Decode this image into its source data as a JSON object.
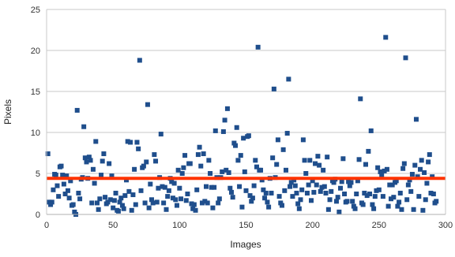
{
  "chart_data": {
    "type": "scatter",
    "title": "",
    "xlabel": "Images",
    "ylabel": "Pixels",
    "xlim": [
      0,
      300
    ],
    "ylim": [
      0,
      25
    ],
    "xticks": [
      "0",
      "50",
      "100",
      "150",
      "200",
      "250",
      "300"
    ],
    "yticks": [
      "0",
      "5",
      "10",
      "15",
      "20",
      "25"
    ],
    "grid": true,
    "legend": "none",
    "marker": "square",
    "point_color": "#1f4e8c",
    "mean_line": {
      "y": 4.4,
      "color": "#ff3300"
    },
    "points": [
      [
        1,
        7.4
      ],
      [
        2,
        1.5
      ],
      [
        3,
        1.2
      ],
      [
        4,
        1.5
      ],
      [
        5,
        3.0
      ],
      [
        6,
        4.9
      ],
      [
        7,
        4.8
      ],
      [
        8,
        3.5
      ],
      [
        9,
        2.2
      ],
      [
        10,
        5.8
      ],
      [
        11,
        5.9
      ],
      [
        12,
        4.8
      ],
      [
        13,
        3.7
      ],
      [
        14,
        2.5
      ],
      [
        15,
        4.7
      ],
      [
        16,
        2.9
      ],
      [
        17,
        2.0
      ],
      [
        18,
        4.1
      ],
      [
        19,
        1.1
      ],
      [
        20,
        1.2
      ],
      [
        21,
        0.3
      ],
      [
        22,
        0.0
      ],
      [
        23,
        12.7
      ],
      [
        24,
        2.6
      ],
      [
        25,
        1.9
      ],
      [
        26,
        4.3
      ],
      [
        27,
        4.5
      ],
      [
        28,
        10.7
      ],
      [
        29,
        6.9
      ],
      [
        30,
        6.4
      ],
      [
        31,
        4.4
      ],
      [
        32,
        7.0
      ],
      [
        33,
        6.6
      ],
      [
        34,
        1.4
      ],
      [
        35,
        5.5
      ],
      [
        36,
        3.8
      ],
      [
        37,
        8.9
      ],
      [
        38,
        1.4
      ],
      [
        39,
        0.6
      ],
      [
        40,
        1.9
      ],
      [
        41,
        4.8
      ],
      [
        42,
        6.5
      ],
      [
        43,
        7.4
      ],
      [
        44,
        2.1
      ],
      [
        45,
        1.3
      ],
      [
        46,
        1.5
      ],
      [
        47,
        6.2
      ],
      [
        48,
        1.8
      ],
      [
        49,
        4.7
      ],
      [
        50,
        0.8
      ],
      [
        51,
        1.7
      ],
      [
        52,
        2.6
      ],
      [
        53,
        0.5
      ],
      [
        54,
        0.4
      ],
      [
        55,
        1.5
      ],
      [
        56,
        2.0
      ],
      [
        57,
        1.1
      ],
      [
        58,
        0.7
      ],
      [
        59,
        2.3
      ],
      [
        60,
        4.2
      ],
      [
        61,
        8.9
      ],
      [
        62,
        2.8
      ],
      [
        63,
        8.8
      ],
      [
        64,
        0.5
      ],
      [
        65,
        2.4
      ],
      [
        66,
        5.5
      ],
      [
        67,
        1.2
      ],
      [
        68,
        8.8
      ],
      [
        69,
        8.0
      ],
      [
        70,
        18.8
      ],
      [
        71,
        2.9
      ],
      [
        72,
        5.7
      ],
      [
        73,
        5.9
      ],
      [
        74,
        1.4
      ],
      [
        75,
        6.4
      ],
      [
        76,
        13.4
      ],
      [
        77,
        0.8
      ],
      [
        78,
        3.7
      ],
      [
        79,
        1.8
      ],
      [
        80,
        1.4
      ],
      [
        81,
        7.3
      ],
      [
        82,
        6.5
      ],
      [
        83,
        1.5
      ],
      [
        84,
        3.2
      ],
      [
        85,
        4.5
      ],
      [
        86,
        9.8
      ],
      [
        87,
        3.4
      ],
      [
        88,
        1.4
      ],
      [
        89,
        3.3
      ],
      [
        90,
        0.6
      ],
      [
        91,
        2.2
      ],
      [
        92,
        2.9
      ],
      [
        93,
        4.4
      ],
      [
        94,
        4.0
      ],
      [
        95,
        2.0
      ],
      [
        96,
        3.8
      ],
      [
        97,
        1.8
      ],
      [
        98,
        1.1
      ],
      [
        99,
        5.4
      ],
      [
        100,
        3.2
      ],
      [
        101,
        1.9
      ],
      [
        102,
        5.0
      ],
      [
        103,
        5.7
      ],
      [
        104,
        7.2
      ],
      [
        105,
        1.7
      ],
      [
        106,
        2.5
      ],
      [
        107,
        6.2
      ],
      [
        108,
        6.2
      ],
      [
        109,
        1.3
      ],
      [
        110,
        0.7
      ],
      [
        111,
        1.2
      ],
      [
        112,
        0.5
      ],
      [
        113,
        3.0
      ],
      [
        114,
        7.3
      ],
      [
        115,
        8.2
      ],
      [
        116,
        5.9
      ],
      [
        117,
        1.4
      ],
      [
        118,
        7.4
      ],
      [
        119,
        1.6
      ],
      [
        120,
        3.4
      ],
      [
        121,
        1.4
      ],
      [
        122,
        6.6
      ],
      [
        123,
        5.0
      ],
      [
        124,
        3.3
      ],
      [
        125,
        0.8
      ],
      [
        126,
        3.3
      ],
      [
        127,
        10.2
      ],
      [
        128,
        4.5
      ],
      [
        129,
        1.4
      ],
      [
        130,
        1.9
      ],
      [
        131,
        4.5
      ],
      [
        132,
        5.2
      ],
      [
        133,
        10.1
      ],
      [
        134,
        11.5
      ],
      [
        135,
        5.4
      ],
      [
        136,
        12.9
      ],
      [
        137,
        5.1
      ],
      [
        138,
        3.2
      ],
      [
        139,
        2.7
      ],
      [
        140,
        2.1
      ],
      [
        141,
        8.7
      ],
      [
        142,
        8.4
      ],
      [
        143,
        10.6
      ],
      [
        144,
        6.6
      ],
      [
        145,
        3.4
      ],
      [
        146,
        7.2
      ],
      [
        147,
        0.9
      ],
      [
        148,
        9.3
      ],
      [
        149,
        5.2
      ],
      [
        150,
        2.9
      ],
      [
        151,
        9.5
      ],
      [
        152,
        9.6
      ],
      [
        153,
        2.3
      ],
      [
        154,
        1.6
      ],
      [
        155,
        2.0
      ],
      [
        156,
        3.5
      ],
      [
        157,
        6.6
      ],
      [
        158,
        5.8
      ],
      [
        159,
        20.4
      ],
      [
        160,
        5.4
      ],
      [
        161,
        5.4
      ],
      [
        162,
        4.2
      ],
      [
        163,
        3.0
      ],
      [
        164,
        2.0
      ],
      [
        165,
        2.6
      ],
      [
        166,
        1.5
      ],
      [
        167,
        0.9
      ],
      [
        168,
        4.4
      ],
      [
        169,
        2.6
      ],
      [
        170,
        6.9
      ],
      [
        171,
        15.3
      ],
      [
        172,
        4.5
      ],
      [
        173,
        6.1
      ],
      [
        174,
        9.1
      ],
      [
        175,
        2.2
      ],
      [
        176,
        1.4
      ],
      [
        177,
        1.1
      ],
      [
        178,
        7.9
      ],
      [
        179,
        2.9
      ],
      [
        180,
        5.4
      ],
      [
        181,
        9.9
      ],
      [
        182,
        16.5
      ],
      [
        183,
        3.4
      ],
      [
        184,
        3.9
      ],
      [
        185,
        2.2
      ],
      [
        186,
        4.2
      ],
      [
        187,
        3.5
      ],
      [
        188,
        2.6
      ],
      [
        189,
        1.3
      ],
      [
        190,
        0.7
      ],
      [
        191,
        1.8
      ],
      [
        192,
        3.0
      ],
      [
        193,
        9.1
      ],
      [
        194,
        6.6
      ],
      [
        195,
        5.0
      ],
      [
        196,
        2.6
      ],
      [
        197,
        3.6
      ],
      [
        198,
        6.6
      ],
      [
        199,
        1.7
      ],
      [
        200,
        4.1
      ],
      [
        201,
        2.7
      ],
      [
        202,
        6.2
      ],
      [
        203,
        3.6
      ],
      [
        204,
        7.1
      ],
      [
        205,
        6.0
      ],
      [
        206,
        2.8
      ],
      [
        207,
        3.3
      ],
      [
        208,
        5.4
      ],
      [
        209,
        3.4
      ],
      [
        210,
        2.6
      ],
      [
        211,
        7.0
      ],
      [
        212,
        0.6
      ],
      [
        213,
        1.8
      ],
      [
        214,
        2.8
      ],
      [
        215,
        4.1
      ],
      [
        216,
        3.9
      ],
      [
        217,
        4.3
      ],
      [
        218,
        1.6
      ],
      [
        219,
        2.1
      ],
      [
        220,
        0.3
      ],
      [
        221,
        3.2
      ],
      [
        222,
        4.0
      ],
      [
        223,
        6.8
      ],
      [
        224,
        2.5
      ],
      [
        225,
        1.5
      ],
      [
        226,
        1.6
      ],
      [
        227,
        4.0
      ],
      [
        228,
        3.5
      ],
      [
        229,
        3.9
      ],
      [
        230,
        1.6
      ],
      [
        231,
        1.0
      ],
      [
        232,
        0.7
      ],
      [
        233,
        2.5
      ],
      [
        234,
        4.1
      ],
      [
        235,
        6.7
      ],
      [
        236,
        14.1
      ],
      [
        237,
        1.4
      ],
      [
        238,
        1.2
      ],
      [
        239,
        2.6
      ],
      [
        240,
        6.1
      ],
      [
        241,
        2.3
      ],
      [
        242,
        7.7
      ],
      [
        243,
        2.5
      ],
      [
        244,
        10.2
      ],
      [
        245,
        1.2
      ],
      [
        246,
        0.7
      ],
      [
        247,
        2.2
      ],
      [
        248,
        2.9
      ],
      [
        249,
        5.7
      ],
      [
        250,
        3.0
      ],
      [
        251,
        5.2
      ],
      [
        252,
        4.8
      ],
      [
        253,
        2.2
      ],
      [
        254,
        5.3
      ],
      [
        255,
        21.6
      ],
      [
        256,
        5.5
      ],
      [
        257,
        1.0
      ],
      [
        258,
        3.6
      ],
      [
        259,
        1.9
      ],
      [
        260,
        3.6
      ],
      [
        261,
        2.1
      ],
      [
        262,
        3.9
      ],
      [
        263,
        4.1
      ],
      [
        264,
        1.0
      ],
      [
        265,
        1.5
      ],
      [
        266,
        2.6
      ],
      [
        267,
        0.6
      ],
      [
        268,
        5.6
      ],
      [
        269,
        6.2
      ],
      [
        270,
        19.1
      ],
      [
        271,
        1.8
      ],
      [
        272,
        3.6
      ],
      [
        273,
        4.2
      ],
      [
        274,
        2.8
      ],
      [
        275,
        4.9
      ],
      [
        276,
        0.6
      ],
      [
        277,
        6.0
      ],
      [
        278,
        11.6
      ],
      [
        279,
        4.6
      ],
      [
        280,
        2.2
      ],
      [
        281,
        5.5
      ],
      [
        282,
        6.6
      ],
      [
        283,
        0.5
      ],
      [
        284,
        5.1
      ],
      [
        285,
        1.8
      ],
      [
        286,
        3.8
      ],
      [
        287,
        6.4
      ],
      [
        288,
        7.3
      ],
      [
        289,
        2.6
      ],
      [
        290,
        4.6
      ],
      [
        291,
        2.5
      ],
      [
        292,
        1.4
      ],
      [
        293,
        1.6
      ]
    ]
  }
}
